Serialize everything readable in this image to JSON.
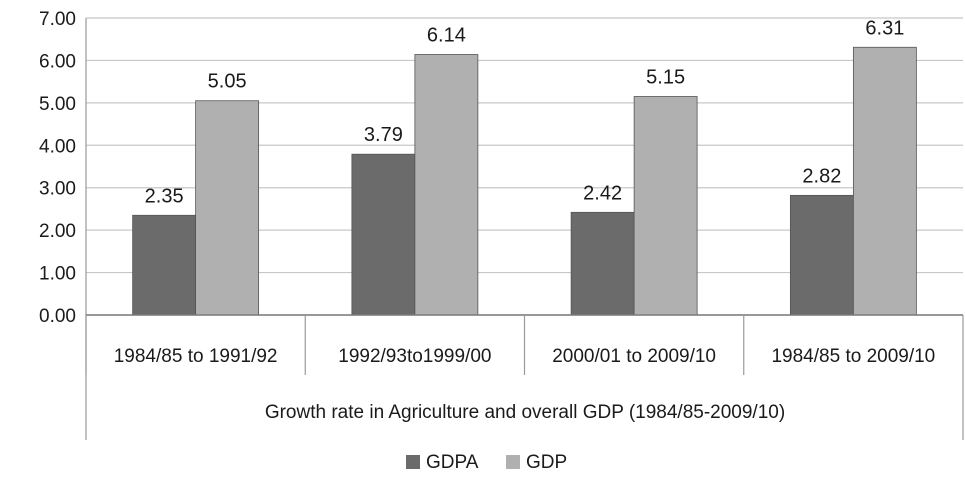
{
  "chart_data": {
    "type": "bar",
    "title": "",
    "xlabel": "Growth rate in Agriculture and overall GDP (1984/85-2009/10)",
    "ylabel": "",
    "ylim": [
      0,
      7
    ],
    "yticks": [
      "0.00",
      "1.00",
      "2.00",
      "3.00",
      "4.00",
      "5.00",
      "6.00",
      "7.00"
    ],
    "grid": true,
    "legend_position": "bottom",
    "categories": [
      "1984/85 to 1991/92",
      "1992/93to1999/00",
      "2000/01 to 2009/10",
      "1984/85 to 2009/10"
    ],
    "series": [
      {
        "name": "GDPA",
        "color": "#6b6b6b",
        "values": [
          2.35,
          3.79,
          2.42,
          2.82
        ],
        "labels": [
          "2.35",
          "3.79",
          "2.42",
          "2.82"
        ]
      },
      {
        "name": "GDP",
        "color": "#b0b0b0",
        "values": [
          5.05,
          6.14,
          5.15,
          6.31
        ],
        "labels": [
          "5.05",
          "6.14",
          "5.15",
          "6.31"
        ]
      }
    ]
  }
}
